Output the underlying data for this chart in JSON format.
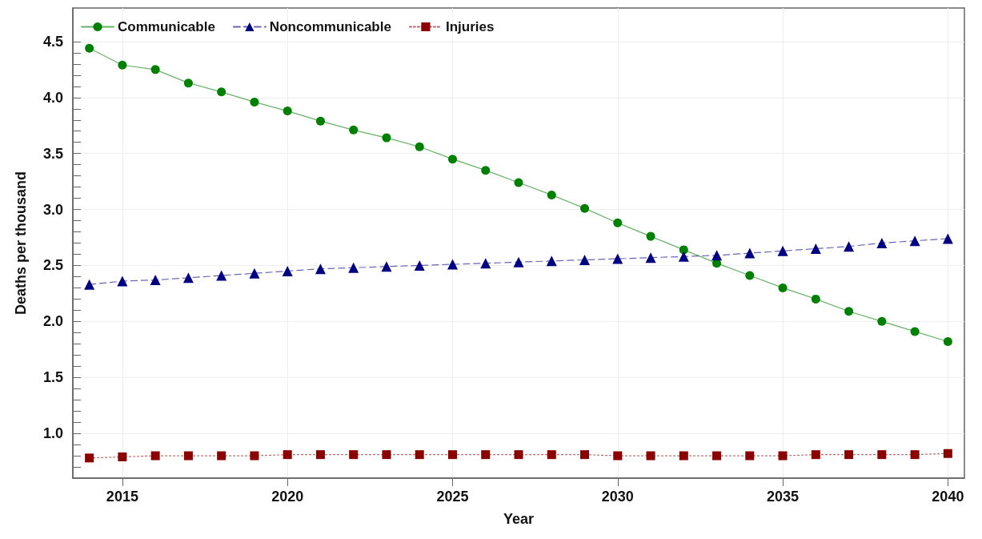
{
  "chart_data": {
    "type": "line",
    "xlabel": "Year",
    "ylabel": "Deaths per thousand",
    "x": [
      2014,
      2015,
      2016,
      2017,
      2018,
      2019,
      2020,
      2021,
      2022,
      2023,
      2024,
      2025,
      2026,
      2027,
      2028,
      2029,
      2030,
      2031,
      2032,
      2033,
      2034,
      2035,
      2036,
      2037,
      2038,
      2039,
      2040
    ],
    "series": [
      {
        "name": "Communicable",
        "color": "#008000",
        "marker": "circle",
        "line_style": "solid",
        "values": [
          4.44,
          4.29,
          4.25,
          4.13,
          4.05,
          3.96,
          3.88,
          3.79,
          3.71,
          3.64,
          3.56,
          3.45,
          3.35,
          3.24,
          3.13,
          3.01,
          2.88,
          2.76,
          2.64,
          2.52,
          2.41,
          2.3,
          2.2,
          2.09,
          2.0,
          1.91,
          1.82
        ]
      },
      {
        "name": "Noncommunicable",
        "color": "#000080",
        "marker": "triangle",
        "line_style": "dashed",
        "values": [
          2.33,
          2.36,
          2.37,
          2.39,
          2.41,
          2.43,
          2.45,
          2.47,
          2.48,
          2.49,
          2.5,
          2.51,
          2.52,
          2.53,
          2.54,
          2.55,
          2.56,
          2.57,
          2.58,
          2.59,
          2.61,
          2.63,
          2.65,
          2.67,
          2.7,
          2.72,
          2.74
        ]
      },
      {
        "name": "Injuries",
        "color": "#8b0000",
        "marker": "square",
        "line_style": "dotted",
        "values": [
          0.78,
          0.79,
          0.8,
          0.8,
          0.8,
          0.8,
          0.81,
          0.81,
          0.81,
          0.81,
          0.81,
          0.81,
          0.81,
          0.81,
          0.81,
          0.81,
          0.8,
          0.8,
          0.8,
          0.8,
          0.8,
          0.8,
          0.81,
          0.81,
          0.81,
          0.81,
          0.82
        ]
      }
    ],
    "xlim": [
      2013.5,
      2040.5
    ],
    "xticks": [
      2015,
      2020,
      2025,
      2030,
      2035,
      2040
    ],
    "ylim": [
      0.6,
      4.8
    ],
    "yticks": [
      {
        "value": 0.7,
        "label": null
      },
      {
        "value": 0.8,
        "label": null
      },
      {
        "value": 0.9,
        "label": null
      },
      {
        "value": 1,
        "label": "1.0"
      },
      {
        "value": 1.1,
        "label": null
      },
      {
        "value": 1.2,
        "label": null
      },
      {
        "value": 1.3,
        "label": null
      },
      {
        "value": 1.4,
        "label": null
      },
      1.5,
      {
        "value": 1.6,
        "label": null
      },
      {
        "value": 1.7,
        "label": null
      },
      {
        "value": 1.8,
        "label": null
      },
      {
        "value": 1.9,
        "label": null
      },
      {
        "value": 2,
        "label": "2.0"
      },
      {
        "value": 2.1,
        "label": null
      },
      {
        "value": 2.2,
        "label": null
      },
      {
        "value": 2.3,
        "label": null
      },
      {
        "value": 2.4,
        "label": null
      },
      2.5,
      {
        "value": 2.6,
        "label": null
      },
      {
        "value": 2.7,
        "label": null
      },
      {
        "value": 2.8,
        "label": null
      },
      {
        "value": 2.9,
        "label": null
      },
      {
        "value": 3,
        "label": "3.0"
      },
      {
        "value": 3.1,
        "label": null
      },
      {
        "value": 3.2,
        "label": null
      },
      {
        "value": 3.3,
        "label": null
      },
      {
        "value": 3.4,
        "label": null
      },
      3.5,
      {
        "value": 3.6,
        "label": null
      },
      {
        "value": 3.7,
        "label": null
      },
      {
        "value": 3.8,
        "label": null
      },
      {
        "value": 3.9,
        "label": null
      },
      {
        "value": 4,
        "label": "4.0"
      },
      {
        "value": 4.1,
        "label": null
      },
      {
        "value": 4.2,
        "label": null
      },
      {
        "value": 4.3,
        "label": null
      },
      {
        "value": 4.4,
        "label": null
      },
      4.5
    ],
    "grid": true,
    "legend": "top left"
  }
}
